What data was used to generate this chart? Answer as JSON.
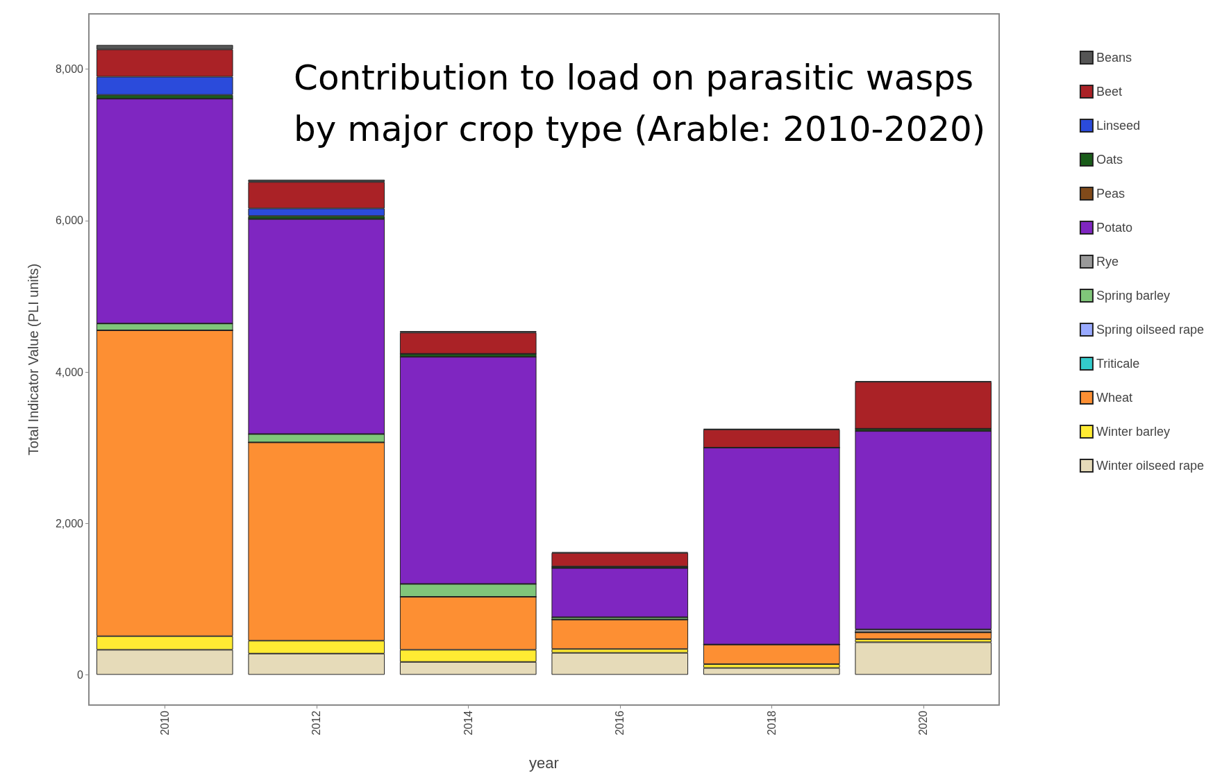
{
  "chart_data": {
    "type": "bar",
    "stacked": true,
    "title": "Contribution to load on parasitic wasps\nby major crop type (Arable: 2010-2020)",
    "xlabel": "year",
    "ylabel": "Total Indicator Value (PLI units)",
    "categories": [
      "2010",
      "2012",
      "2014",
      "2016",
      "2018",
      "2020"
    ],
    "series": [
      {
        "name": "Winter oilseed rape",
        "color": "#e6dbb9",
        "values": [
          330,
          280,
          170,
          290,
          90,
          430
        ]
      },
      {
        "name": "Winter barley",
        "color": "#ffeb33",
        "values": [
          180,
          170,
          160,
          50,
          50,
          40
        ]
      },
      {
        "name": "Wheat",
        "color": "#fd8f33",
        "values": [
          4040,
          2620,
          700,
          390,
          260,
          90
        ]
      },
      {
        "name": "Triticale",
        "color": "#33cccc",
        "values": [
          0,
          0,
          0,
          0,
          0,
          0
        ]
      },
      {
        "name": "Spring oilseed rape",
        "color": "#99aaff",
        "values": [
          0,
          0,
          0,
          0,
          0,
          0
        ]
      },
      {
        "name": "Spring barley",
        "color": "#80c67a",
        "values": [
          90,
          110,
          170,
          30,
          null,
          0
        ]
      },
      {
        "name": "Rye",
        "color": "#999999",
        "values": [
          0,
          0,
          0,
          0,
          0,
          40
        ]
      },
      {
        "name": "Potato",
        "color": "#7f26c1",
        "values": [
          2970,
          2840,
          3000,
          650,
          2600,
          2620
        ]
      },
      {
        "name": "Peas",
        "color": "#804a1a",
        "values": [
          0,
          0,
          0,
          0,
          0,
          0
        ]
      },
      {
        "name": "Oats",
        "color": "#1a5c1a",
        "values": [
          50,
          40,
          40,
          20,
          null,
          30
        ]
      },
      {
        "name": "Linseed",
        "color": "#2b4bdb",
        "values": [
          240,
          100,
          0,
          0,
          0,
          0
        ]
      },
      {
        "name": "Beet",
        "color": "#aa2226",
        "values": [
          360,
          350,
          280,
          180,
          240,
          620
        ]
      },
      {
        "name": "Beans",
        "color": "#555555",
        "values": [
          60,
          30,
          20,
          10,
          10,
          10
        ]
      }
    ],
    "ylim": [
      -400,
      8730
    ],
    "yticks": [
      {
        "value": 0,
        "label": "0"
      },
      {
        "value": 2000,
        "label": "2,000"
      },
      {
        "value": 4000,
        "label": "4,000"
      },
      {
        "value": 6000,
        "label": "6,000"
      },
      {
        "value": 8000,
        "label": "8,000"
      }
    ],
    "legend": "right"
  }
}
